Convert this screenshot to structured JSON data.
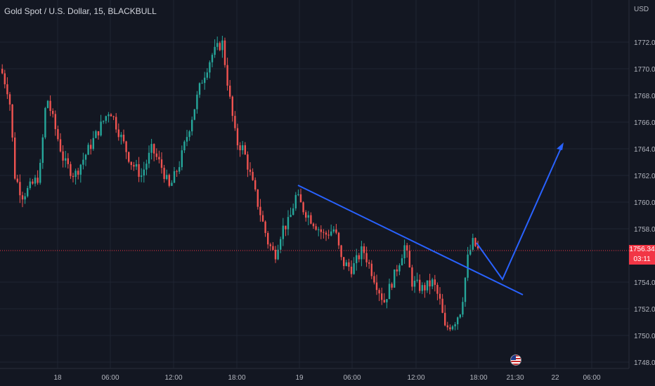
{
  "header": {
    "symbol": "Gold Spot / U.S. Dollar, 15, BLACKBULL"
  },
  "price_axis": {
    "currency": "USD",
    "labels": [
      "1772.00",
      "1770.00",
      "1768.00",
      "1766.00",
      "1764.00",
      "1762.00",
      "1760.00",
      "1758.00",
      "1754.00",
      "1752.00",
      "1750.00",
      "1748.00"
    ]
  },
  "current_price": {
    "value": "1756.34",
    "countdown": "03:11"
  },
  "time_axis": {
    "labels": [
      "18",
      "06:00",
      "12:00",
      "18:00",
      "19",
      "06:00",
      "12:00",
      "18:00",
      "21:30",
      "22",
      "06:00"
    ]
  },
  "colors": {
    "background": "#131722",
    "up": "#26a69a",
    "down": "#ef5350",
    "drawing": "#2962ff"
  },
  "icons": {
    "event": "us-flag-icon"
  }
}
